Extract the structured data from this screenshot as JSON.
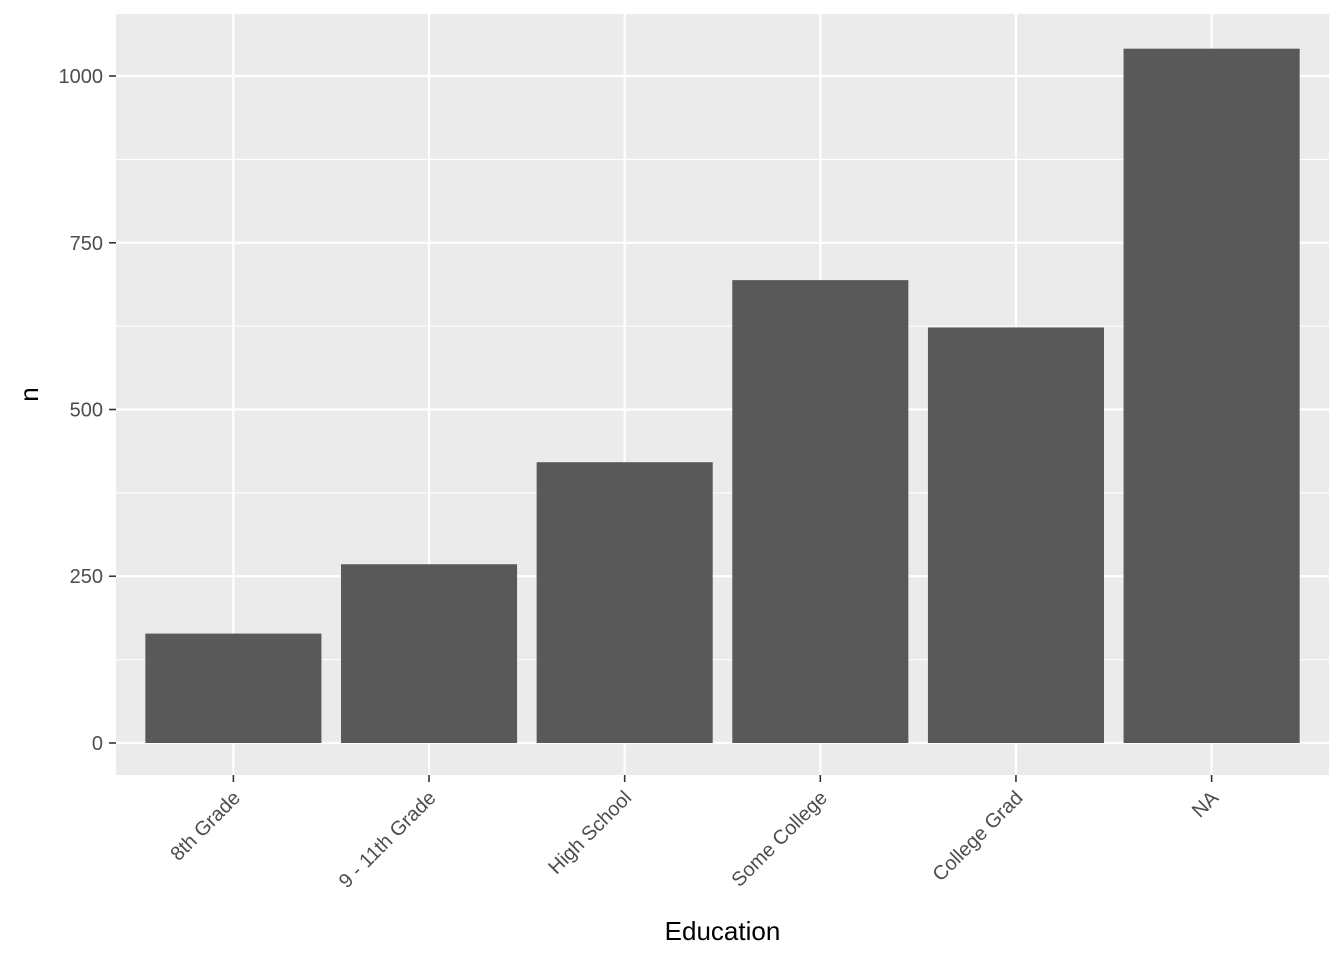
{
  "chart_data": {
    "type": "bar",
    "xlabel": "Education",
    "ylabel": "n",
    "categories": [
      "8th Grade",
      "9 - 11th Grade",
      "High School",
      "Some College",
      "College Grad",
      "NA"
    ],
    "values": [
      164,
      268,
      421,
      694,
      623,
      1041
    ],
    "ylim": [
      -48,
      1093
    ],
    "y_ticks": [
      0,
      250,
      500,
      750,
      1000
    ],
    "y_tick_labels": [
      "0",
      "250",
      "500",
      "750",
      "1000"
    ],
    "grid": true,
    "legend": "none",
    "colors": {
      "panel_background": "#EBEBEB",
      "grid": "#FFFFFF",
      "bar_fill": "#595959",
      "tick_text": "#4D4D4D",
      "tick_mark": "#333333",
      "title_text": "#000000"
    }
  }
}
